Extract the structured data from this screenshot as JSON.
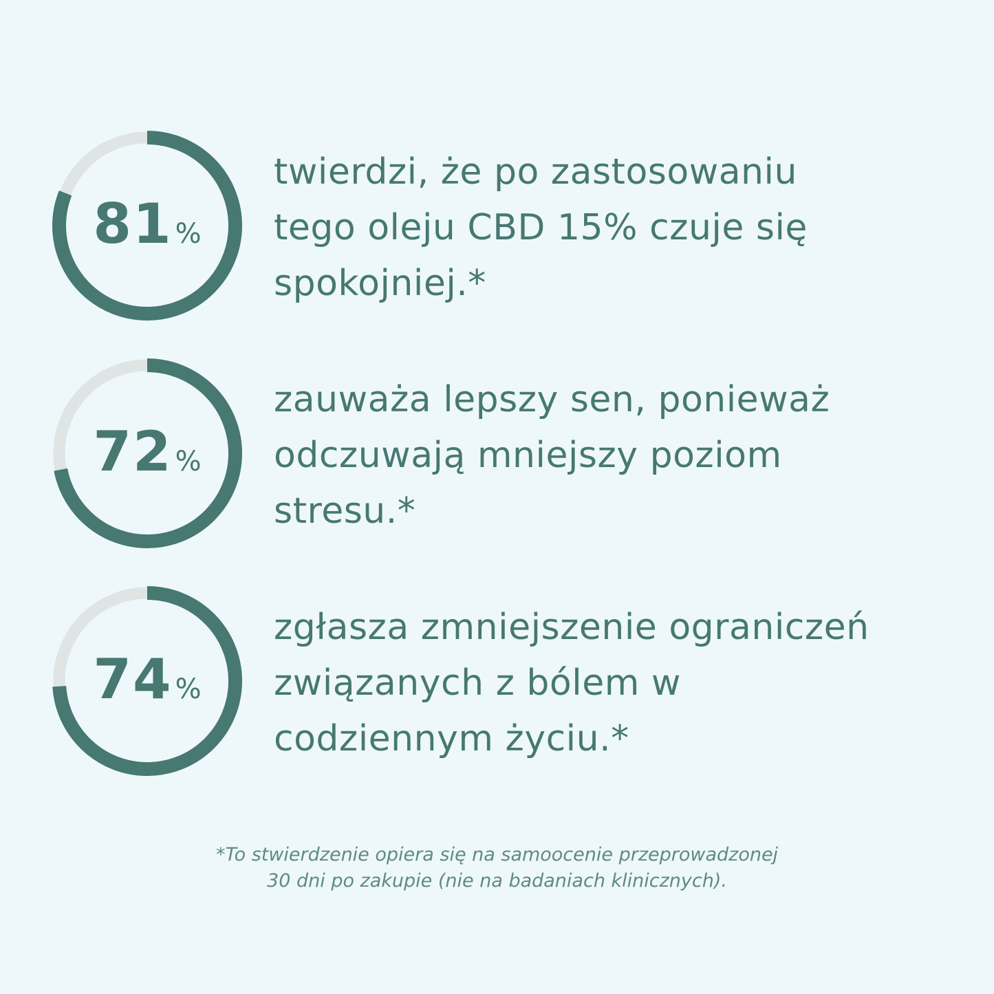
{
  "colors": {
    "background": "#eef8fb",
    "ring_fill": "#477872",
    "ring_track": "#dfe4e4",
    "text": "#477872"
  },
  "stats": [
    {
      "value": 81,
      "number": "81",
      "percent_sign": "%",
      "lines": [
        "twierdzi, że po zastosowaniu",
        "tego oleju CBD 15% czuje się",
        "spokojniej.*"
      ]
    },
    {
      "value": 72,
      "number": "72",
      "percent_sign": "%",
      "lines": [
        "zauważa lepszy sen, ponieważ",
        "odczuwają mniejszy poziom",
        "stresu.*"
      ]
    },
    {
      "value": 74,
      "number": "74",
      "percent_sign": "%",
      "lines": [
        "zgłasza zmniejszenie ograniczeń",
        "związanych z bólem w",
        "codziennym życiu.*"
      ]
    }
  ],
  "footnote": {
    "line1": "*To stwierdzenie opiera się na samoocenie przeprowadzonej",
    "line2": "30 dni po zakupie (nie na badaniach klinicznych)."
  }
}
